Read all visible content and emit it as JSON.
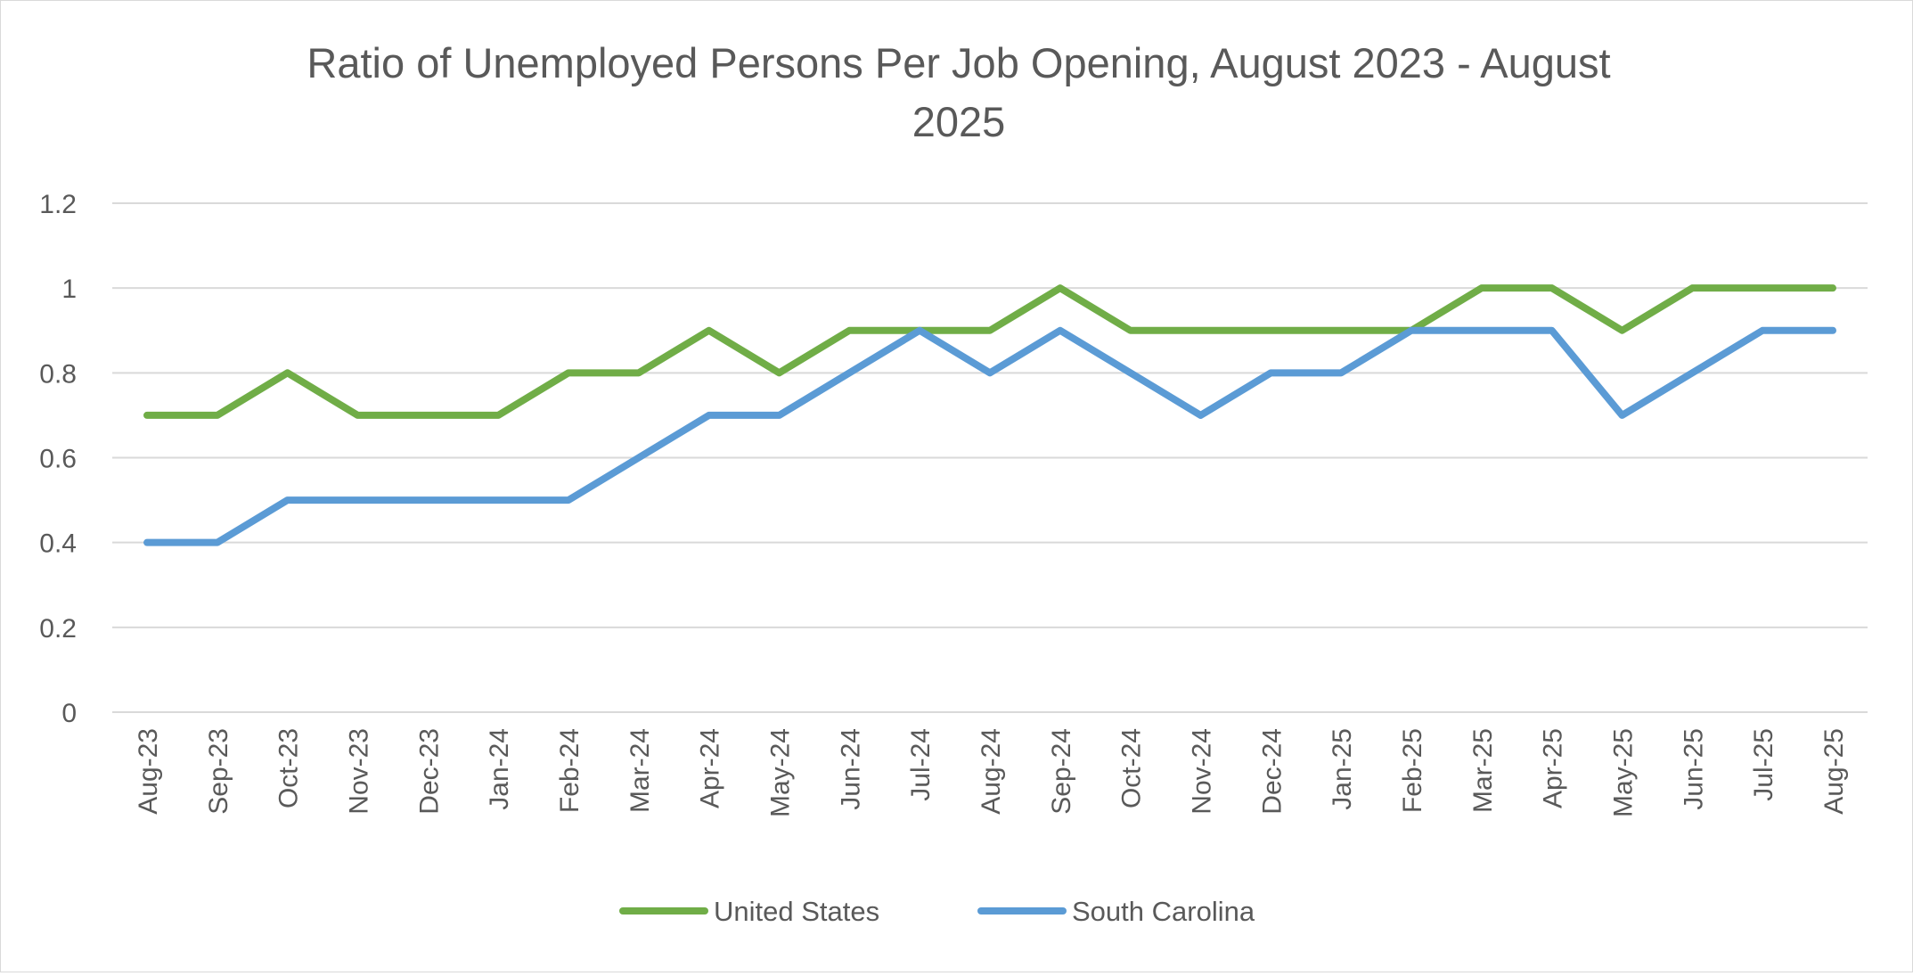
{
  "chart_data": {
    "type": "line",
    "title": "Ratio of Unemployed Persons Per Job Opening, August 2023 - August 2025",
    "title_lines": [
      "Ratio of Unemployed Persons Per Job Opening, August 2023 - August",
      "2025"
    ],
    "xlabel": "",
    "ylabel": "",
    "ylim": [
      0,
      1.2
    ],
    "yticks": [
      "0",
      "0.2",
      "0.4",
      "0.6",
      "0.8",
      "1",
      "1.2"
    ],
    "grid": true,
    "legend_position": "bottom",
    "categories": [
      "Aug-23",
      "Sep-23",
      "Oct-23",
      "Nov-23",
      "Dec-23",
      "Jan-24",
      "Feb-24",
      "Mar-24",
      "Apr-24",
      "May-24",
      "Jun-24",
      "Jul-24",
      "Aug-24",
      "Sep-24",
      "Oct-24",
      "Nov-24",
      "Dec-24",
      "Jan-25",
      "Feb-25",
      "Mar-25",
      "Apr-25",
      "May-25",
      "Jun-25",
      "Jul-25",
      "Aug-25"
    ],
    "series": [
      {
        "name": "United States",
        "color": "#70ad47",
        "values": [
          0.7,
          0.7,
          0.8,
          0.7,
          0.7,
          0.7,
          0.8,
          0.8,
          0.9,
          0.8,
          0.9,
          0.9,
          0.9,
          1.0,
          0.9,
          0.9,
          0.9,
          0.9,
          0.9,
          1.0,
          1.0,
          0.9,
          1.0,
          1.0,
          1.0
        ]
      },
      {
        "name": "South Carolina",
        "color": "#5b9bd5",
        "values": [
          0.4,
          0.4,
          0.5,
          0.5,
          0.5,
          0.5,
          0.5,
          0.6,
          0.7,
          0.7,
          0.8,
          0.9,
          0.8,
          0.9,
          0.8,
          0.7,
          0.8,
          0.8,
          0.9,
          0.9,
          0.9,
          0.7,
          0.8,
          0.9,
          0.9
        ]
      }
    ]
  }
}
